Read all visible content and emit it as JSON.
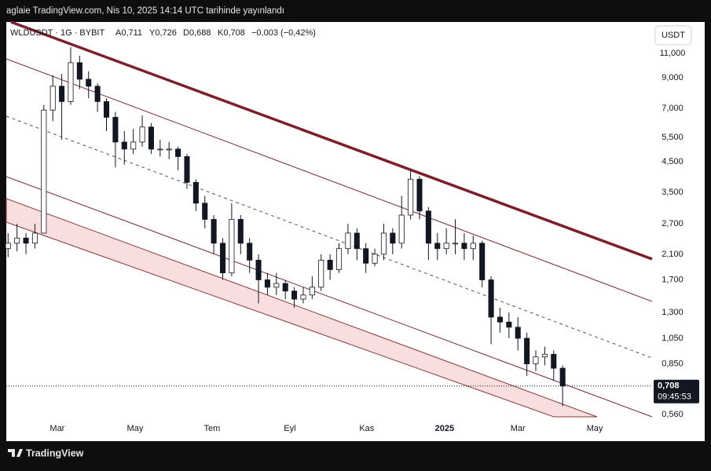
{
  "chart_data": {
    "type": "candlestick",
    "title": "aglaie TradingView.com, Nis 10, 2025 14:14 UTC tarihinde yayınlandı",
    "symbol": "WLDUSDT · 1G · BYBIT",
    "legend_values": [
      "A0,711",
      "Y0,726",
      "D0,688",
      "K0,708",
      "−0,003 (−0,42%)"
    ],
    "currency": "USDT",
    "last_price": {
      "value": 0.708,
      "label": "0,708"
    },
    "countdown": "09:45:53",
    "brand": "TradingView",
    "log_scale": true,
    "candle_color": "#131722",
    "x": [
      0,
      1,
      2,
      3,
      4,
      5,
      6,
      7,
      8,
      9,
      10,
      11,
      12,
      13,
      14,
      15,
      16,
      17,
      18,
      19,
      20,
      21,
      22,
      23,
      24,
      25,
      26,
      27,
      28,
      29,
      30,
      31,
      32,
      33,
      34,
      35,
      36,
      37,
      38,
      39,
      40,
      41,
      42,
      43,
      44,
      45,
      46,
      47,
      48,
      49,
      50,
      51,
      52,
      53,
      54,
      55,
      56,
      57,
      58,
      59,
      60,
      61,
      62
    ],
    "open": [
      2.2,
      2.3,
      2.4,
      2.3,
      2.5,
      6.9,
      8.4,
      7.4,
      10.2,
      8.9,
      8.4,
      7.4,
      6.5,
      5.3,
      5.0,
      5.3,
      6.0,
      5.0,
      5.0,
      5.0,
      4.7,
      3.8,
      3.2,
      2.8,
      2.3,
      1.8,
      2.8,
      2.3,
      2.0,
      1.7,
      1.6,
      1.65,
      1.55,
      1.45,
      1.5,
      1.6,
      2.0,
      1.85,
      2.2,
      2.5,
      2.2,
      1.95,
      2.1,
      2.5,
      2.3,
      2.9,
      3.9,
      3.0,
      2.3,
      2.2,
      2.3,
      2.3,
      2.2,
      2.3,
      1.7,
      1.25,
      1.2,
      1.15,
      1.05,
      0.85,
      0.9,
      0.92,
      0.82
    ],
    "high": [
      2.5,
      2.7,
      2.5,
      2.7,
      7.2,
      9.2,
      9.3,
      11.6,
      10.8,
      9.5,
      8.6,
      7.6,
      6.8,
      5.8,
      5.9,
      6.6,
      6.2,
      5.4,
      5.3,
      5.1,
      4.8,
      3.9,
      3.4,
      2.9,
      2.4,
      3.2,
      2.9,
      2.4,
      2.1,
      1.8,
      1.8,
      1.7,
      1.6,
      1.6,
      1.75,
      2.1,
      2.1,
      2.3,
      2.7,
      2.6,
      2.3,
      2.2,
      2.7,
      2.6,
      3.4,
      4.2,
      4.0,
      3.1,
      2.5,
      2.6,
      2.8,
      2.5,
      2.45,
      2.35,
      1.75,
      1.35,
      1.3,
      1.25,
      1.1,
      0.95,
      0.98,
      0.95,
      0.84
    ],
    "low": [
      2.05,
      2.15,
      2.1,
      2.2,
      2.5,
      6.3,
      5.4,
      7.2,
      8.2,
      7.6,
      6.8,
      5.8,
      4.3,
      4.4,
      4.8,
      5.1,
      4.8,
      4.7,
      4.6,
      4.2,
      3.6,
      3.0,
      2.6,
      2.1,
      1.7,
      1.75,
      2.1,
      1.8,
      1.4,
      1.5,
      1.5,
      1.45,
      1.35,
      1.4,
      1.45,
      1.55,
      1.7,
      1.8,
      2.1,
      2.0,
      1.8,
      1.9,
      2.0,
      2.1,
      2.2,
      2.8,
      2.8,
      2.0,
      2.0,
      2.1,
      2.1,
      2.0,
      2.0,
      1.6,
      1.0,
      1.1,
      1.05,
      0.95,
      0.77,
      0.8,
      0.84,
      0.74,
      0.6
    ],
    "close": [
      2.3,
      2.4,
      2.3,
      2.5,
      6.9,
      8.4,
      7.4,
      10.2,
      8.9,
      8.4,
      7.4,
      6.5,
      5.3,
      5.0,
      5.3,
      6.0,
      5.0,
      5.0,
      5.0,
      4.7,
      3.8,
      3.2,
      2.8,
      2.3,
      1.8,
      2.8,
      2.3,
      2.0,
      1.7,
      1.6,
      1.65,
      1.55,
      1.45,
      1.5,
      1.6,
      2.0,
      1.85,
      2.2,
      2.5,
      2.2,
      1.95,
      2.1,
      2.5,
      2.3,
      2.9,
      3.9,
      3.0,
      2.3,
      2.2,
      2.3,
      2.3,
      2.2,
      2.3,
      1.7,
      1.25,
      1.2,
      1.15,
      1.05,
      0.85,
      0.9,
      0.92,
      0.82,
      0.708
    ],
    "xlim": [
      -0.2,
      72
    ],
    "xticks": [
      {
        "value": 5.5,
        "label": "Mar"
      },
      {
        "value": 14.2,
        "label": "May"
      },
      {
        "value": 22.8,
        "label": "Tem"
      },
      {
        "value": 31.5,
        "label": "Eyl"
      },
      {
        "value": 40.1,
        "label": "Kas"
      },
      {
        "value": 48.8,
        "label": "2025"
      },
      {
        "value": 57.0,
        "label": "Mar"
      },
      {
        "value": 65.6,
        "label": "May"
      }
    ],
    "ylim": [
      0.535,
      14.27
    ],
    "yticks": [
      {
        "value": 11,
        "label": "11,000"
      },
      {
        "value": 9,
        "label": "9,000"
      },
      {
        "value": 7,
        "label": "7,000"
      },
      {
        "value": 5.5,
        "label": "5,500"
      },
      {
        "value": 4.5,
        "label": "4,500"
      },
      {
        "value": 3.5,
        "label": "3,500"
      },
      {
        "value": 2.7,
        "label": "2,700"
      },
      {
        "value": 2.1,
        "label": "2,100"
      },
      {
        "value": 1.7,
        "label": "1,700"
      },
      {
        "value": 1.3,
        "label": "1,300"
      },
      {
        "value": 1.05,
        "label": "1,050"
      },
      {
        "value": 0.85,
        "label": "0,850"
      },
      {
        "value": 0.56,
        "label": "0,560"
      }
    ]
  }
}
